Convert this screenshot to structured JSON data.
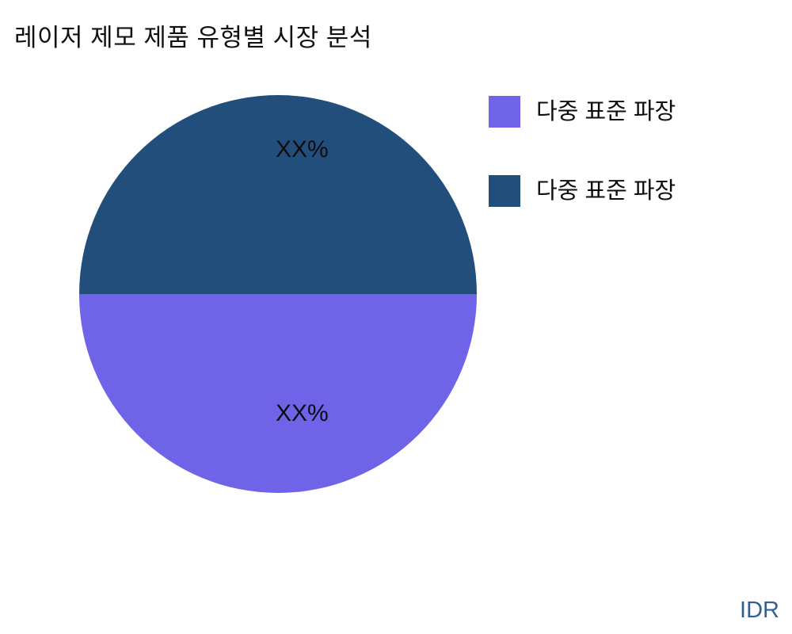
{
  "title": "레이저 제모 제품 유형별 시장 분석",
  "watermark": "IDR",
  "colors": {
    "slice_purple": "#6F63E8",
    "slice_darkblue": "#224E7C",
    "watermark": "#2E6293",
    "title_text": "#111111"
  },
  "chart_data": {
    "type": "pie",
    "title": "레이저 제모 제품 유형별 시장 분석",
    "labels": [
      "다중 표준 파장",
      "다중 표준 파장"
    ],
    "values": [
      50,
      50
    ],
    "display_values": [
      "XX%",
      "XX%"
    ],
    "colors": [
      "#6F63E8",
      "#224E7C"
    ],
    "start_angle_deg": 90,
    "legend_position": "right",
    "notes": "slice 1 (purple) is the bottom half, slice 2 (dark blue) is the top half; numeric values masked as XX% on the chart"
  }
}
